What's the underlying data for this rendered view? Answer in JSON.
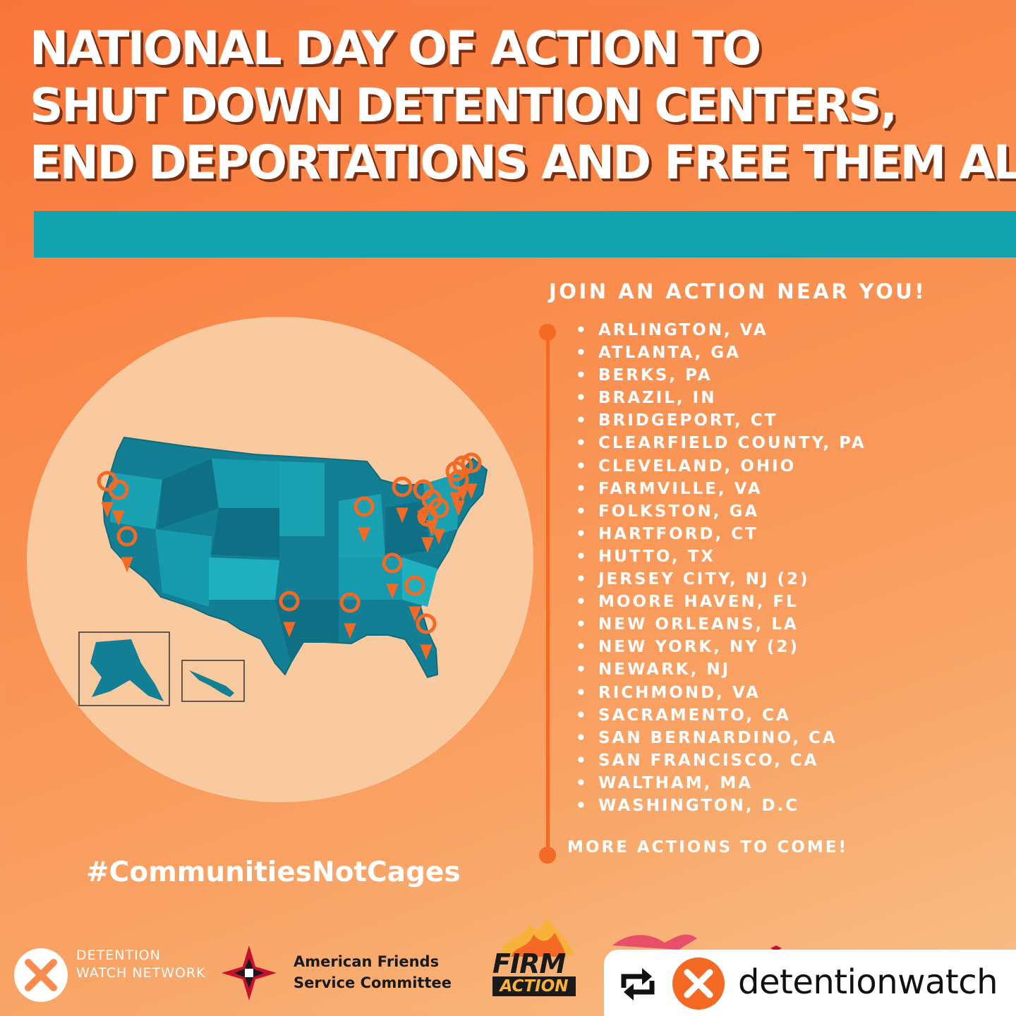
{
  "title_lines": [
    "NATIONAL DAY OF ACTION TO",
    "SHUT DOWN DETENTION CENTERS,",
    "END DEPORTATIONS AND FREE THEM ALL"
  ],
  "join_heading": "JOIN AN ACTION NEAR YOU!",
  "cities": [
    "ARLINGTON, VA",
    "ATLANTA, GA",
    "BERKS, PA",
    "BRAZIL, IN",
    "BRIDGEPORT, CT",
    "CLEARFIELD COUNTY, PA",
    "CLEVELAND, OHIO",
    "FARMVILLE, VA",
    "FOLKSTON, GA",
    "HARTFORD, CT",
    "HUTTO, TX",
    "JERSEY CITY, NJ (2)",
    "MOORE HAVEN, FL",
    "NEW ORLEANS, LA",
    "NEW YORK, NY (2)",
    "NEWARK, NJ",
    "RICHMOND, VA",
    "SACRAMENTO, CA",
    "SAN BERNARDINO, CA",
    "SAN FRANCISCO, CA",
    "WALTHAM, MA",
    "WASHINGTON, D.C"
  ],
  "more_actions": "MORE ACTIONS TO COME!",
  "hashtag": "#CommunitiesNotCages",
  "logos": {
    "dwn_line1": "DETENTION",
    "dwn_line2": "WATCH NETWORK",
    "afsc_line1": "American Friends",
    "afsc_line2": "Service Committee",
    "firm_line1": "FIRM",
    "firm_line2": "ACTION"
  },
  "repost": {
    "username": "detentionwatch"
  },
  "colors": {
    "orange_accent": "#f46a24",
    "teal": "#12a3ae",
    "map_circle": "#f9c9a0"
  },
  "icons": [
    "map-pin-icon",
    "repost-icon",
    "dwn-logo-icon",
    "afsc-star-icon"
  ]
}
